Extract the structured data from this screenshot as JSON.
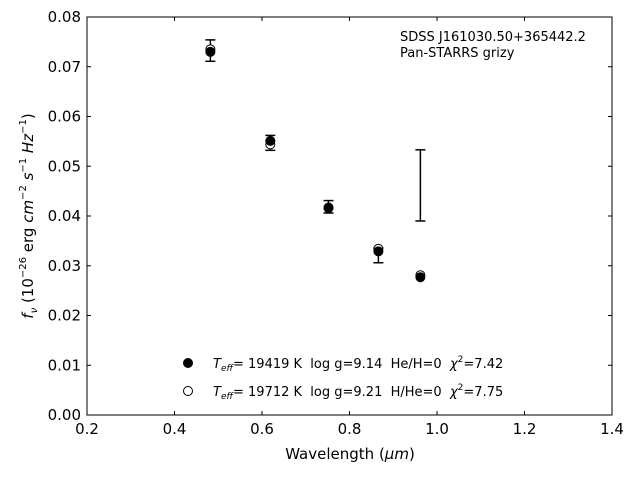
{
  "chart_data": {
    "type": "scatter",
    "annotation": {
      "line1": "SDSS J161030.50+365442.2",
      "line2": "Pan-STARRS grizy"
    },
    "xlabel": {
      "text": "Wavelength (",
      "unit": "μm",
      "close": ")"
    },
    "ylabel": {
      "prefix": "f",
      "sub": "ν",
      "unit_open": " (10",
      "exp1": "−26",
      "erg": " erg ",
      "cm": "cm",
      "exp2": "−2",
      "s": " s",
      "exp3": "−1",
      "hz": " Hz",
      "exp4": "−1",
      "unit_close": ")"
    },
    "xlim": [
      0.2,
      1.4
    ],
    "ylim": [
      0.0,
      0.08
    ],
    "xticks": [
      "0.2",
      "0.4",
      "0.6",
      "0.8",
      "1.0",
      "1.2",
      "1.4"
    ],
    "yticks": [
      "0.00",
      "0.01",
      "0.02",
      "0.03",
      "0.04",
      "0.05",
      "0.06",
      "0.07",
      "0.08"
    ],
    "observed": {
      "x": [
        0.482,
        0.619,
        0.752,
        0.866,
        0.962
      ],
      "y": [
        0.0732,
        0.0547,
        0.0419,
        0.0321,
        0.0461
      ],
      "yerr_low": [
        0.0711,
        0.0532,
        0.0406,
        0.0306,
        0.039
      ],
      "yerr_high": [
        0.0754,
        0.0562,
        0.0431,
        0.0336,
        0.0533
      ]
    },
    "series": [
      {
        "marker": "filled",
        "x": [
          0.482,
          0.619,
          0.752,
          0.866,
          0.962
        ],
        "y": [
          0.073,
          0.0551,
          0.0416,
          0.0329,
          0.0277
        ],
        "legend": {
          "T": "T",
          "Tsub": "eff",
          "rest": "= 19419 K  log g=9.14  He/H=0  ",
          "chi": "χ",
          "chiexp": "2",
          "chival": "=7.42"
        }
      },
      {
        "marker": "open",
        "x": [
          0.482,
          0.619,
          0.752,
          0.866,
          0.962
        ],
        "y": [
          0.0735,
          0.0544,
          0.0417,
          0.0334,
          0.0281
        ],
        "legend": {
          "T": "T",
          "Tsub": "eff",
          "rest": "= 19712 K  log g=9.21  H/He=0  ",
          "chi": "χ",
          "chiexp": "2",
          "chival": "=7.75"
        }
      }
    ]
  }
}
